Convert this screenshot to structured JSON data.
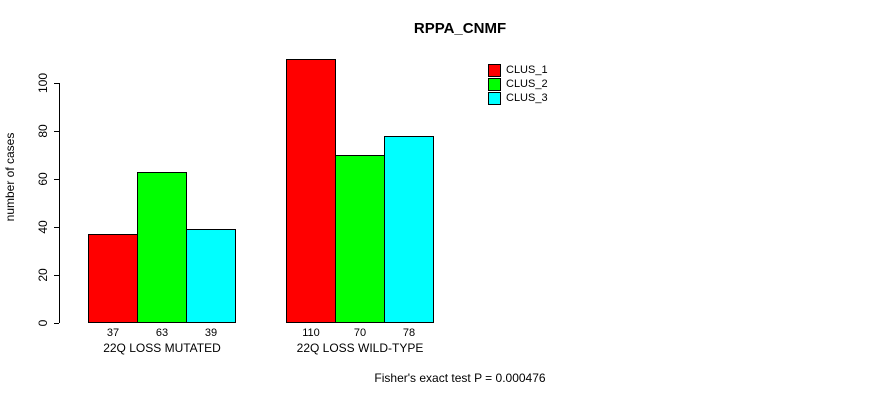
{
  "title": "RPPA_CNMF",
  "footer": "Fisher's exact test P = 0.000476",
  "chart_data": {
    "type": "bar",
    "title": "RPPA_CNMF",
    "xlabel": "",
    "ylabel": "number of cases",
    "categories": [
      "22Q LOSS MUTATED",
      "22Q LOSS WILD-TYPE"
    ],
    "series": [
      {
        "name": "CLUS_1",
        "color": "#FF0000",
        "values": [
          37,
          110
        ]
      },
      {
        "name": "CLUS_2",
        "color": "#00FF00",
        "values": [
          63,
          70
        ]
      },
      {
        "name": "CLUS_3",
        "color": "#00FFFF",
        "values": [
          39,
          78
        ]
      }
    ],
    "bar_value_labels": [
      [
        37,
        63,
        39
      ],
      [
        110,
        70,
        78
      ]
    ],
    "ylim": [
      0,
      110
    ],
    "yticks": [
      0,
      20,
      40,
      60,
      80,
      100
    ],
    "grid": false,
    "legend_position": "top-right",
    "annotation": "Fisher's exact test P = 0.000476",
    "background": "#FFFFFF",
    "bar_border_color": "#000000"
  }
}
